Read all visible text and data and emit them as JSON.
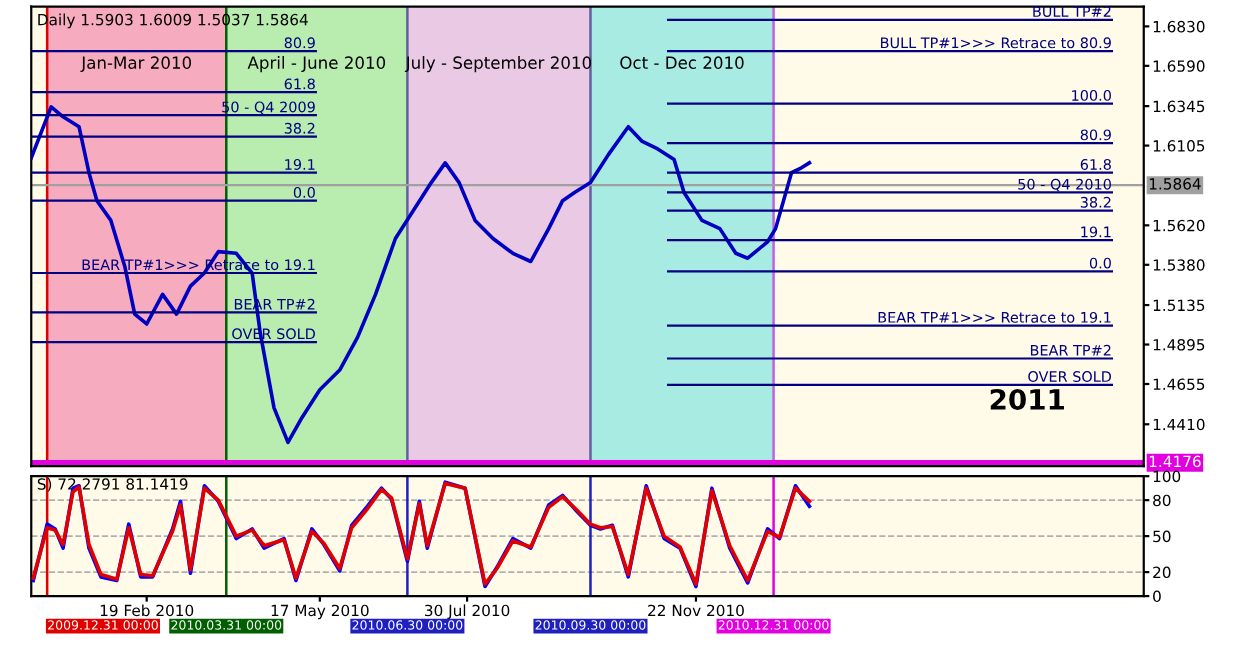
{
  "chart_data": [
    {
      "type": "line",
      "title": "Daily 1.5903 1.6009 1.5037 1.5864",
      "xlim": [
        "2009-12-23",
        "2011-07-05"
      ],
      "ylim": [
        1.4155,
        1.695
      ],
      "yticks": [
        {
          "value": 1.683,
          "label": "1.6830"
        },
        {
          "value": 1.659,
          "label": "1.6590"
        },
        {
          "value": 1.6345,
          "label": "1.6345"
        },
        {
          "value": 1.6105,
          "label": "1.6105"
        },
        {
          "value": 1.562,
          "label": "1.5620"
        },
        {
          "value": 1.538,
          "label": "1.5380"
        },
        {
          "value": 1.5135,
          "label": "1.5135"
        },
        {
          "value": 1.4895,
          "label": "1.4895"
        },
        {
          "value": 1.4655,
          "label": "1.4655"
        },
        {
          "value": 1.441,
          "label": "1.4410"
        }
      ],
      "tick_labels": "y",
      "grid": false,
      "legend": false,
      "series": [
        {
          "color": "#0000c0",
          "x": [
            "2009-12-23",
            "2010-01-02",
            "2010-01-08",
            "2010-01-16",
            "2010-01-21",
            "2010-01-25",
            "2010-02-01",
            "2010-02-08",
            "2010-02-13",
            "2010-02-19",
            "2010-02-27",
            "2010-03-06",
            "2010-03-13",
            "2010-03-20",
            "2010-03-27",
            "2010-04-05",
            "2010-04-13",
            "2010-04-17",
            "2010-04-24",
            "2010-05-01",
            "2010-05-08",
            "2010-05-17",
            "2010-05-27",
            "2010-06-05",
            "2010-06-14",
            "2010-06-24",
            "2010-07-03",
            "2010-07-12",
            "2010-07-19",
            "2010-07-26",
            "2010-08-03",
            "2010-08-12",
            "2010-08-22",
            "2010-08-31",
            "2010-09-09",
            "2010-09-16",
            "2010-09-22",
            "2010-09-30",
            "2010-10-09",
            "2010-10-19",
            "2010-10-26",
            "2010-11-02",
            "2010-11-11",
            "2010-11-16",
            "2010-11-25",
            "2010-12-04",
            "2010-12-12",
            "2010-12-18",
            "2010-12-28",
            "2011-01-01",
            "2011-01-09",
            "2011-01-14",
            "2011-01-18"
          ],
          "values": [
            1.603,
            1.634,
            1.628,
            1.622,
            1.594,
            1.577,
            1.565,
            1.537,
            1.508,
            1.502,
            1.52,
            1.508,
            1.525,
            1.533,
            1.546,
            1.545,
            1.533,
            1.497,
            1.451,
            1.43,
            1.445,
            1.462,
            1.474,
            1.494,
            1.52,
            1.554,
            1.571,
            1.588,
            1.6,
            1.588,
            1.565,
            1.554,
            1.545,
            1.54,
            1.56,
            1.577,
            1.582,
            1.588,
            1.605,
            1.622,
            1.613,
            1.609,
            1.602,
            1.582,
            1.565,
            1.56,
            1.545,
            1.542,
            1.552,
            1.56,
            1.594,
            1.597,
            1.6
          ]
        },
        {
          "name": "80.9",
          "color": "#000080",
          "x": [
            "2009-12-23",
            "2010-05-15"
          ],
          "values": [
            1.668,
            1.668
          ]
        },
        {
          "name": "61.8",
          "color": "#000080",
          "x": [
            "2009-12-23",
            "2010-05-15"
          ],
          "values": [
            1.643,
            1.643
          ]
        },
        {
          "name": "50 - Q4 2009",
          "color": "#000080",
          "x": [
            "2009-12-23",
            "2010-05-15"
          ],
          "values": [
            1.629,
            1.629
          ]
        },
        {
          "name": "38.2",
          "color": "#000080",
          "x": [
            "2009-12-23",
            "2010-05-15"
          ],
          "values": [
            1.616,
            1.616
          ]
        },
        {
          "name": "19.1",
          "color": "#000080",
          "x": [
            "2009-12-23",
            "2010-05-15"
          ],
          "values": [
            1.594,
            1.594
          ]
        },
        {
          "name": "0.0",
          "color": "#000080",
          "x": [
            "2009-12-23",
            "2010-05-15"
          ],
          "values": [
            1.577,
            1.577
          ]
        },
        {
          "name": "BEAR TP#1>>> Retrace to 19.1",
          "color": "#000080",
          "x": [
            "2009-12-23",
            "2010-05-15"
          ],
          "values": [
            1.533,
            1.533
          ]
        },
        {
          "name": "BEAR TP#2",
          "color": "#000080",
          "x": [
            "2009-12-23",
            "2010-05-15"
          ],
          "values": [
            1.509,
            1.509
          ]
        },
        {
          "name": "OVER SOLD",
          "color": "#000080",
          "x": [
            "2009-12-23",
            "2010-05-15"
          ],
          "values": [
            1.491,
            1.491
          ]
        },
        {
          "name": "BULL TP#2",
          "color": "#000080",
          "x": [
            "2010-11-08",
            "2011-06-19"
          ],
          "values": [
            1.687,
            1.687
          ]
        },
        {
          "name": "BULL TP#1>>> Retrace to 80.9",
          "color": "#000080",
          "x": [
            "2010-11-08",
            "2011-06-19"
          ],
          "values": [
            1.668,
            1.668
          ]
        },
        {
          "name": "100.0",
          "color": "#000080",
          "x": [
            "2010-11-08",
            "2011-06-19"
          ],
          "values": [
            1.636,
            1.636
          ]
        },
        {
          "name": "80.9",
          "color": "#000080",
          "x": [
            "2010-11-08",
            "2011-06-19"
          ],
          "values": [
            1.612,
            1.612
          ]
        },
        {
          "name": "61.8",
          "color": "#000080",
          "x": [
            "2010-11-08",
            "2011-06-19"
          ],
          "values": [
            1.594,
            1.594
          ]
        },
        {
          "name": "50 - Q4 2010",
          "color": "#000080",
          "x": [
            "2010-11-08",
            "2011-06-19"
          ],
          "values": [
            1.582,
            1.582
          ]
        },
        {
          "name": "38.2",
          "color": "#000080",
          "x": [
            "2010-11-08",
            "2011-06-19"
          ],
          "values": [
            1.571,
            1.571
          ]
        },
        {
          "name": "19.1",
          "color": "#000080",
          "x": [
            "2010-11-08",
            "2011-06-19"
          ],
          "values": [
            1.553,
            1.553
          ]
        },
        {
          "name": "0.0",
          "color": "#000080",
          "x": [
            "2010-11-08",
            "2011-06-19"
          ],
          "values": [
            1.534,
            1.534
          ]
        },
        {
          "name": "BEAR TP#1>>> Retrace to 19.1",
          "color": "#000080",
          "x": [
            "2010-11-08",
            "2011-06-19"
          ],
          "values": [
            1.501,
            1.501
          ]
        },
        {
          "name": "BEAR TP#2",
          "color": "#000080",
          "x": [
            "2010-11-08",
            "2011-06-19"
          ],
          "values": [
            1.481,
            1.481
          ]
        },
        {
          "name": "OVER SOLD",
          "color": "#000080",
          "x": [
            "2010-11-08",
            "2011-06-19"
          ],
          "values": [
            1.465,
            1.465
          ]
        }
      ],
      "bands": [
        {
          "axis": "x",
          "from": "2009-12-31",
          "to": "2010-03-31",
          "label": "Jan-Mar 2010",
          "color": "#f06a9c"
        },
        {
          "axis": "x",
          "from": "2010-03-31",
          "to": "2010-06-30",
          "label": "April - June 2010",
          "color": "#80e080"
        },
        {
          "axis": "x",
          "from": "2010-06-30",
          "to": "2010-09-30",
          "label": "July - September 2010",
          "color": "#d8a0e0"
        },
        {
          "axis": "x",
          "from": "2010-09-30",
          "to": "2010-12-31",
          "label": "Oct - Dec 2010",
          "color": "#60dede"
        }
      ],
      "ref_lines": [
        {
          "axis": "x",
          "value": "2009-12-31",
          "color": "#e00000"
        },
        {
          "axis": "x",
          "value": "2010-03-31",
          "color": "#006000"
        },
        {
          "axis": "x",
          "value": "2010-06-30",
          "color": "#6060a0"
        },
        {
          "axis": "x",
          "value": "2010-09-30",
          "color": "#6060a0"
        },
        {
          "axis": "x",
          "value": "2010-12-31",
          "color": "#c060e0"
        },
        {
          "axis": "y",
          "value": 1.5864,
          "label": "1.5864",
          "color": "#a0a0a0"
        },
        {
          "axis": "y",
          "value": 1.4176,
          "label": "1.4176",
          "color": "#e000e0"
        }
      ],
      "annotations": [
        "2011"
      ]
    },
    {
      "type": "line",
      "title": "S) 72.2791 81.1419",
      "xlim": [
        "2009-12-23",
        "2011-07-05"
      ],
      "ylim": [
        0,
        100
      ],
      "yticks": [
        0,
        20,
        50,
        80,
        100
      ],
      "xticks": [
        {
          "value": "2010-02-19",
          "label": "19 Feb 2010"
        },
        {
          "value": "2010-05-17",
          "label": "17 May 2010"
        },
        {
          "value": "2010-07-30",
          "label": "30 Jul 2010"
        },
        {
          "value": "2010-11-22",
          "label": "22 Nov 2010"
        }
      ],
      "grid": "y",
      "legend": false,
      "series": [
        {
          "color": "#0000ff",
          "x": [
            "2009-12-24",
            "2009-12-31",
            "2010-01-04",
            "2010-01-08",
            "2010-01-13",
            "2010-01-16",
            "2010-01-21",
            "2010-01-27",
            "2010-02-04",
            "2010-02-10",
            "2010-02-16",
            "2010-02-22",
            "2010-03-04",
            "2010-03-08",
            "2010-03-13",
            "2010-03-20",
            "2010-03-27",
            "2010-04-05",
            "2010-04-13",
            "2010-04-19",
            "2010-04-29",
            "2010-05-05",
            "2010-05-13",
            "2010-05-19",
            "2010-05-27",
            "2010-06-02",
            "2010-06-10",
            "2010-06-17",
            "2010-06-22",
            "2010-06-30",
            "2010-07-06",
            "2010-07-10",
            "2010-07-19",
            "2010-07-29",
            "2010-08-08",
            "2010-08-14",
            "2010-08-22",
            "2010-08-31",
            "2010-09-09",
            "2010-09-16",
            "2010-09-23",
            "2010-09-30",
            "2010-10-05",
            "2010-10-11",
            "2010-10-19",
            "2010-10-28",
            "2010-11-06",
            "2010-11-14",
            "2010-11-22",
            "2010-11-30",
            "2010-12-09",
            "2010-12-18",
            "2010-12-28",
            "2011-01-03",
            "2011-01-11",
            "2011-01-18"
          ],
          "values": [
            13,
            60,
            56,
            40,
            90,
            92,
            40,
            16,
            13,
            60,
            16,
            16,
            56,
            79,
            19,
            92,
            79,
            48,
            56,
            40,
            48,
            13,
            56,
            43,
            21,
            59,
            75,
            90,
            81,
            29,
            79,
            40,
            95,
            90,
            8,
            24,
            48,
            40,
            76,
            84,
            71,
            59,
            56,
            59,
            16,
            92,
            48,
            40,
            8,
            90,
            40,
            11,
            56,
            48,
            92,
            75
          ]
        },
        {
          "color": "#e00000",
          "x": [
            "2009-12-24",
            "2009-12-31",
            "2010-01-04",
            "2010-01-08",
            "2010-01-13",
            "2010-01-16",
            "2010-01-21",
            "2010-01-27",
            "2010-02-04",
            "2010-02-10",
            "2010-02-16",
            "2010-02-22",
            "2010-03-04",
            "2010-03-08",
            "2010-03-13",
            "2010-03-20",
            "2010-03-27",
            "2010-04-05",
            "2010-04-13",
            "2010-04-19",
            "2010-04-29",
            "2010-05-05",
            "2010-05-13",
            "2010-05-19",
            "2010-05-27",
            "2010-06-02",
            "2010-06-10",
            "2010-06-17",
            "2010-06-22",
            "2010-06-30",
            "2010-07-06",
            "2010-07-10",
            "2010-07-19",
            "2010-07-29",
            "2010-08-08",
            "2010-08-14",
            "2010-08-22",
            "2010-08-31",
            "2010-09-09",
            "2010-09-16",
            "2010-09-23",
            "2010-09-30",
            "2010-10-05",
            "2010-10-11",
            "2010-10-19",
            "2010-10-28",
            "2010-11-06",
            "2010-11-14",
            "2010-11-22",
            "2010-11-30",
            "2010-12-09",
            "2010-12-18",
            "2010-12-28",
            "2011-01-03",
            "2011-01-11",
            "2011-01-18"
          ],
          "values": [
            15,
            57,
            55,
            43,
            87,
            91,
            43,
            18,
            14,
            57,
            18,
            17,
            54,
            76,
            22,
            90,
            80,
            50,
            55,
            42,
            47,
            15,
            54,
            44,
            23,
            57,
            73,
            89,
            82,
            31,
            77,
            42,
            94,
            90,
            10,
            23,
            46,
            41,
            74,
            83,
            72,
            60,
            57,
            58,
            18,
            90,
            50,
            41,
            10,
            88,
            42,
            13,
            54,
            49,
            90,
            79
          ]
        }
      ],
      "ref_lines": [
        {
          "axis": "x",
          "value": "2009-12-31",
          "label": "2009.12.31 00:00",
          "color": "#e00000"
        },
        {
          "axis": "x",
          "value": "2010-03-31",
          "label": "2010.03.31 00:00",
          "color": "#006000"
        },
        {
          "axis": "x",
          "value": "2010-06-30",
          "label": "2010.06.30 00:00",
          "color": "#2020c0"
        },
        {
          "axis": "x",
          "value": "2010-09-30",
          "label": "2010.09.30 00:00",
          "color": "#2020c0"
        },
        {
          "axis": "x",
          "value": "2010-12-31",
          "label": "2010.12.31 00:00",
          "color": "#e000e0"
        }
      ]
    }
  ]
}
